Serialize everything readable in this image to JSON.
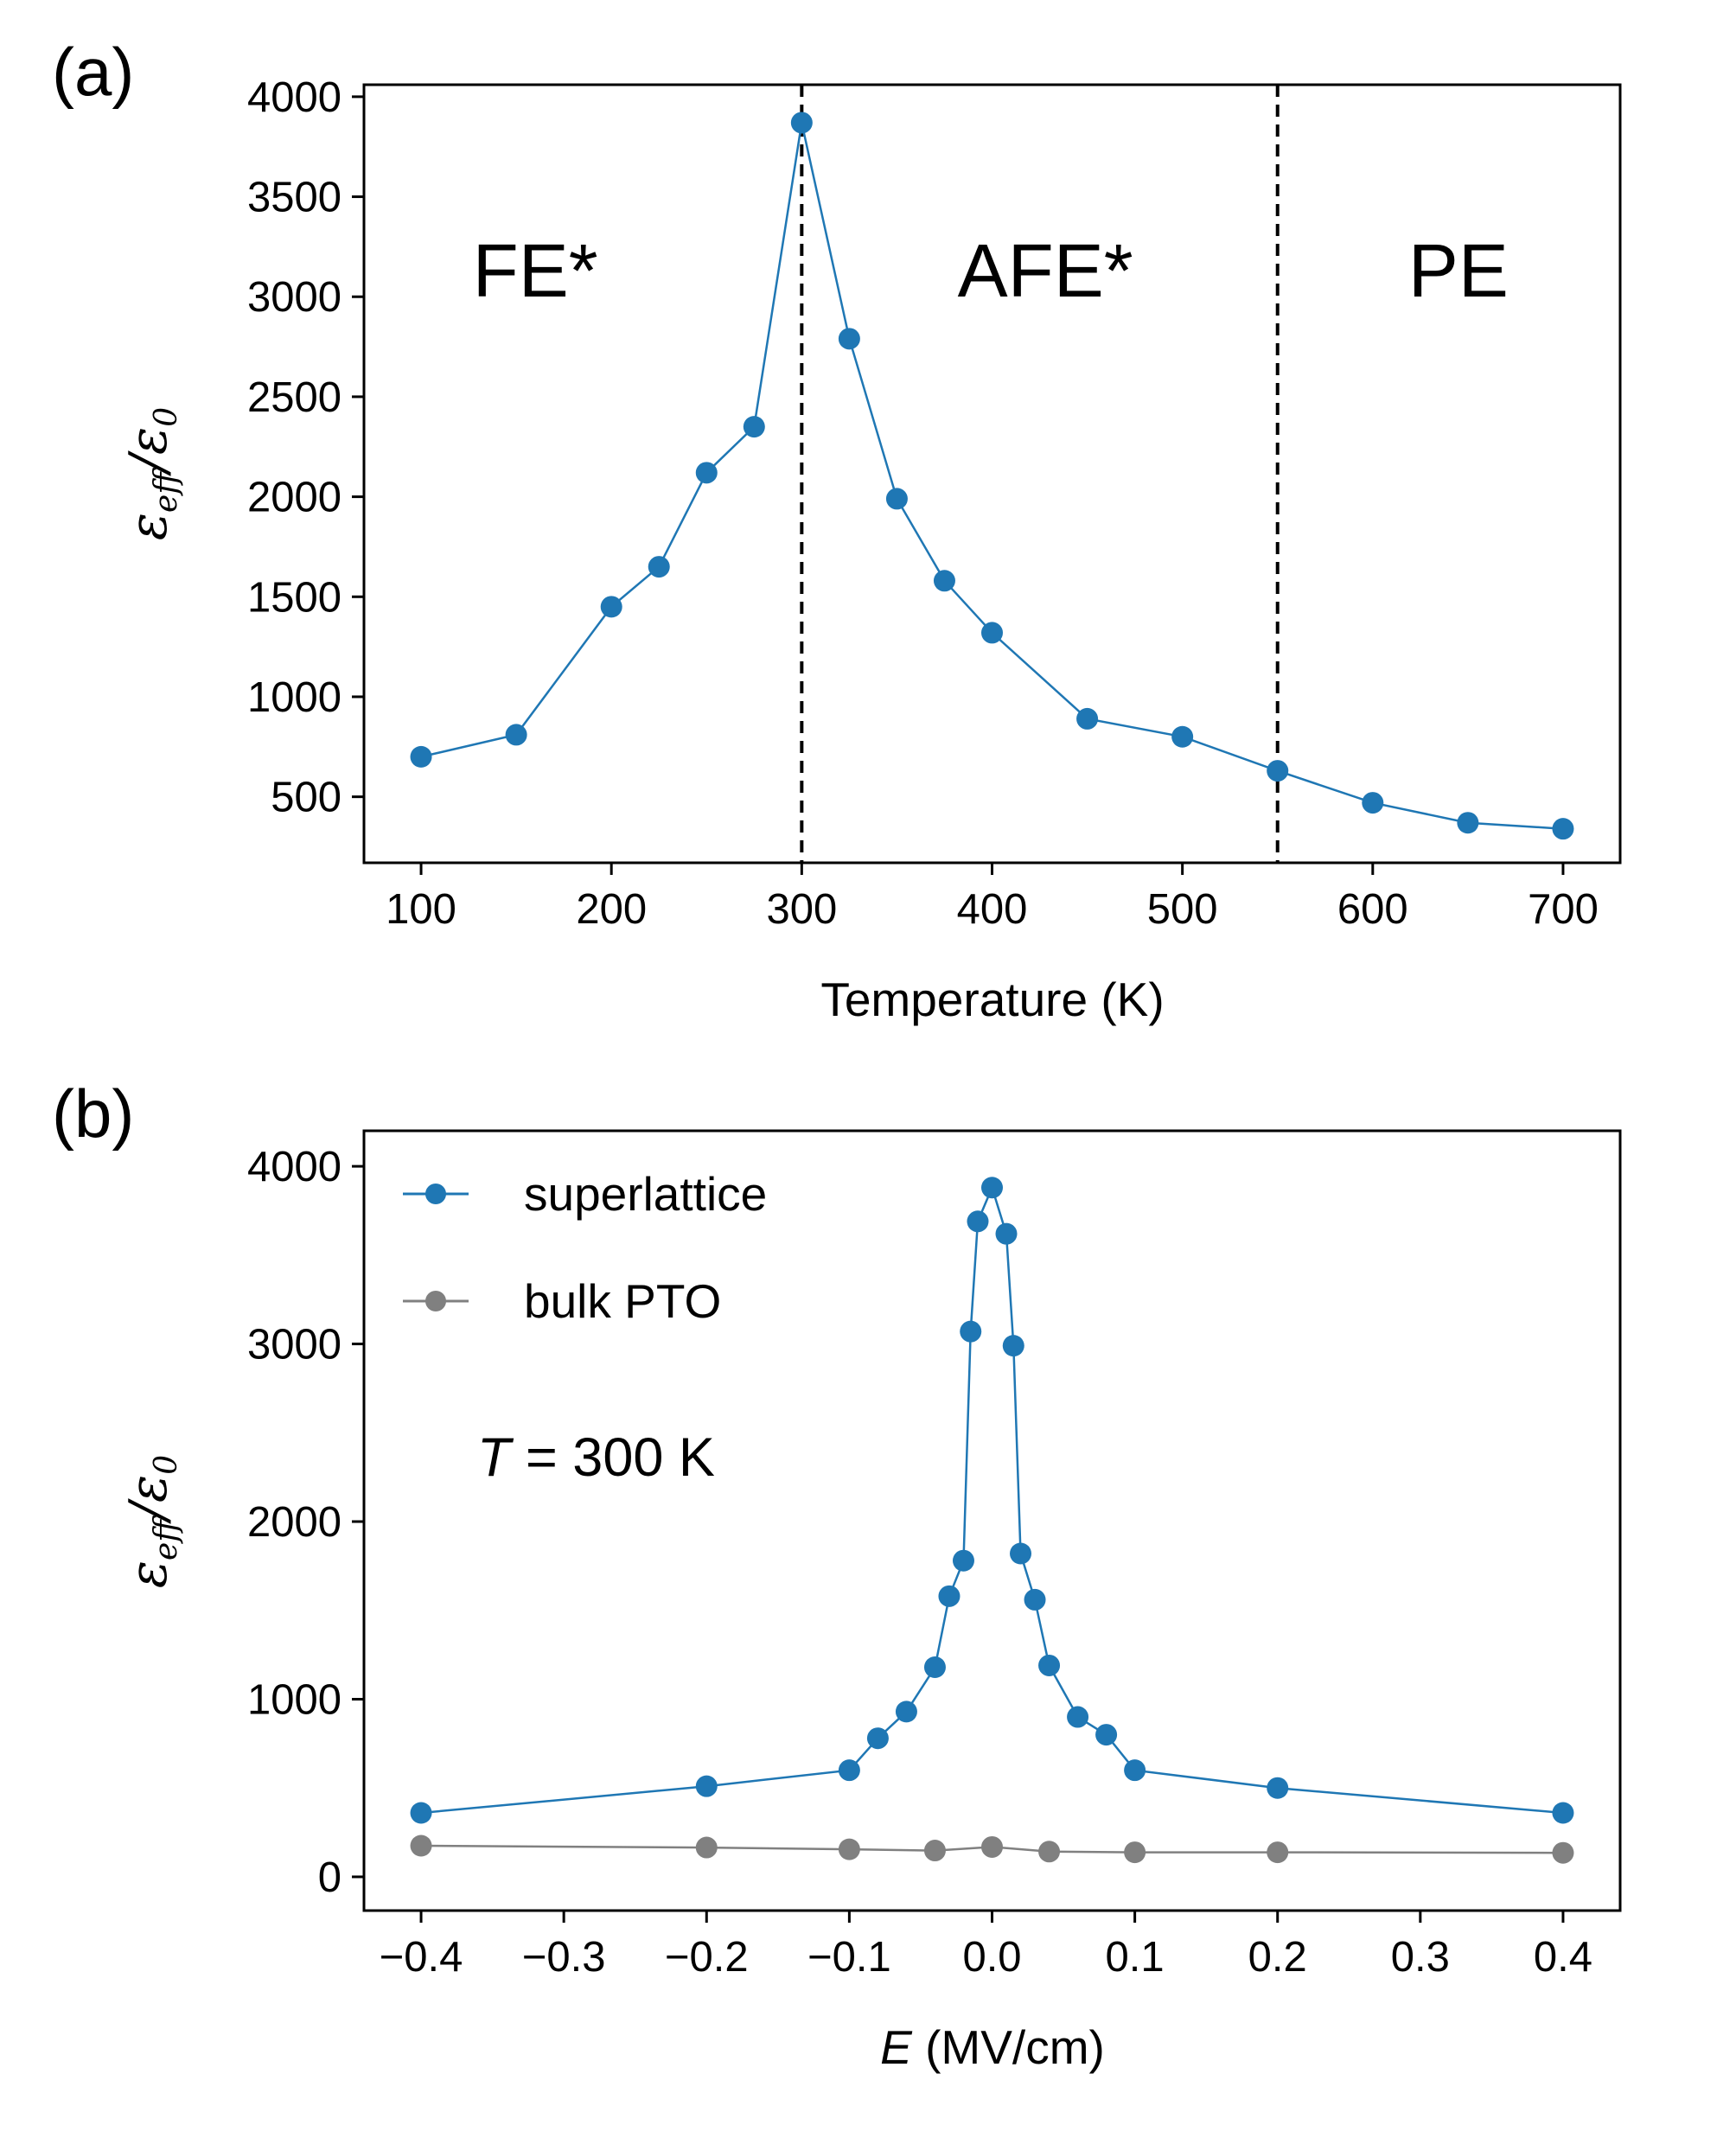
{
  "colors": {
    "superlattice": "#1f77b4",
    "bulk": "#808080",
    "axis": "#000000"
  },
  "chart_data": [
    {
      "type": "line",
      "panel_label": "(a)",
      "xlabel": "Temperature (K)",
      "ylabel": {
        "base": "ε",
        "sub1": "eff",
        "mid": "/ε",
        "sub2": "0"
      },
      "xlim": [
        70,
        730
      ],
      "ylim": [
        170,
        4060
      ],
      "xticks": [
        100,
        200,
        300,
        400,
        500,
        600,
        700
      ],
      "xtick_labels": [
        "100",
        "200",
        "300",
        "400",
        "500",
        "600",
        "700"
      ],
      "yticks": [
        500,
        1000,
        1500,
        2000,
        2500,
        3000,
        3500,
        4000
      ],
      "ytick_labels": [
        "500",
        "1000",
        "1500",
        "2000",
        "2500",
        "3000",
        "3500",
        "4000"
      ],
      "series": [
        {
          "name": "superlattice",
          "color": "#1f77b4",
          "x": [
            100,
            150,
            200,
            225,
            250,
            275,
            300,
            325,
            350,
            375,
            400,
            450,
            500,
            550,
            600,
            650,
            700
          ],
          "y": [
            700,
            810,
            1450,
            1650,
            2120,
            2350,
            3870,
            2790,
            1990,
            1580,
            1320,
            890,
            800,
            630,
            470,
            370,
            340
          ]
        }
      ],
      "vlines": [
        300,
        550
      ],
      "regions": [
        {
          "label": "FE*",
          "x": 160,
          "y": 3130
        },
        {
          "label": "AFE*",
          "x": 428,
          "y": 3130
        },
        {
          "label": "PE",
          "x": 645,
          "y": 3130
        }
      ]
    },
    {
      "type": "line",
      "panel_label": "(b)",
      "xlabel": {
        "italic": "E",
        "rest": " (MV/cm)"
      },
      "ylabel": {
        "base": "ε",
        "sub1": "eff",
        "mid": "/ε",
        "sub2": "0"
      },
      "xlim": [
        -0.44,
        0.44
      ],
      "ylim": [
        -190,
        4200
      ],
      "xticks": [
        -0.4,
        -0.3,
        -0.2,
        -0.1,
        0.0,
        0.1,
        0.2,
        0.3,
        0.4
      ],
      "xtick_labels": [
        "−0.4",
        "−0.3",
        "−0.2",
        "−0.1",
        "0.0",
        "0.1",
        "0.2",
        "0.3",
        "0.4"
      ],
      "yticks": [
        0,
        1000,
        2000,
        3000,
        4000
      ],
      "ytick_labels": [
        "0",
        "1000",
        "2000",
        "3000",
        "4000"
      ],
      "series": [
        {
          "name": "superlattice",
          "color": "#1f77b4",
          "x": [
            -0.4,
            -0.2,
            -0.1,
            -0.08,
            -0.06,
            -0.04,
            -0.03,
            -0.02,
            -0.015,
            -0.01,
            0.0,
            0.01,
            0.015,
            0.02,
            0.03,
            0.04,
            0.06,
            0.08,
            0.1,
            0.2,
            0.4
          ],
          "y": [
            360,
            510,
            600,
            780,
            930,
            1180,
            1580,
            1780,
            3070,
            3690,
            3880,
            3620,
            2990,
            1820,
            1560,
            1190,
            900,
            800,
            600,
            500,
            360
          ]
        },
        {
          "name": "bulk PTO",
          "color": "#808080",
          "x": [
            -0.4,
            -0.2,
            -0.1,
            -0.04,
            0.0,
            0.04,
            0.1,
            0.2,
            0.4
          ],
          "y": [
            175,
            165,
            155,
            148,
            168,
            142,
            138,
            138,
            135
          ]
        }
      ],
      "annotation": {
        "italic": "T",
        "rest": " = 300 K"
      },
      "legend": {
        "placement": "upper-left",
        "entries": [
          "superlattice",
          "bulk PTO"
        ]
      }
    }
  ]
}
